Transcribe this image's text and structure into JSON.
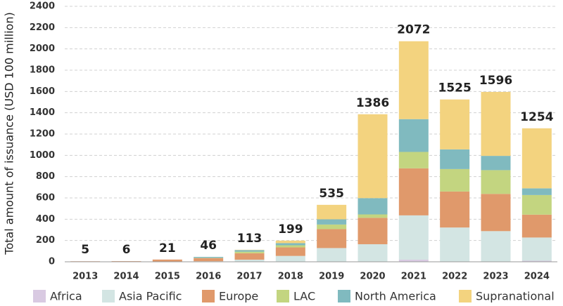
{
  "chart_data": {
    "type": "stacked_bar",
    "y_label": "Total amount of issuance (USD 100 million)",
    "categories": [
      "2013",
      "2014",
      "2015",
      "2016",
      "2017",
      "2018",
      "2019",
      "2020",
      "2021",
      "2022",
      "2023",
      "2024"
    ],
    "series": [
      {
        "name": "Africa",
        "color": "#d9cae2",
        "values": [
          0,
          0,
          0,
          0,
          0,
          0,
          0,
          0,
          20,
          3,
          2,
          10
        ]
      },
      {
        "name": "Asia Pacific",
        "color": "#d3e5e3",
        "values": [
          0,
          0,
          3,
          5,
          20,
          55,
          129,
          165,
          416,
          319,
          286,
          218
        ]
      },
      {
        "name": "Europe",
        "color": "#e0996b",
        "values": [
          5,
          6,
          18,
          30,
          60,
          80,
          178,
          248,
          442,
          338,
          350,
          215
        ]
      },
      {
        "name": "LAC",
        "color": "#c3d580",
        "values": [
          0,
          0,
          0,
          2,
          15,
          20,
          43,
          32,
          154,
          211,
          223,
          184
        ]
      },
      {
        "name": "North America",
        "color": "#80babf",
        "values": [
          0,
          0,
          0,
          9,
          15,
          20,
          49,
          153,
          308,
          185,
          134,
          63
        ]
      },
      {
        "name": "Supranational",
        "color": "#f3d37f",
        "values": [
          0,
          0,
          0,
          0,
          3,
          24,
          136,
          788,
          732,
          469,
          601,
          564
        ]
      }
    ],
    "totals": [
      5,
      6,
      21,
      46,
      113,
      199,
      535,
      1386,
      2072,
      1525,
      1596,
      1254
    ],
    "ylim": [
      0,
      2400
    ],
    "yticks": [
      0,
      200,
      400,
      600,
      800,
      1000,
      1200,
      1400,
      1600,
      1800,
      2000,
      2200,
      2400
    ],
    "grid": true
  }
}
